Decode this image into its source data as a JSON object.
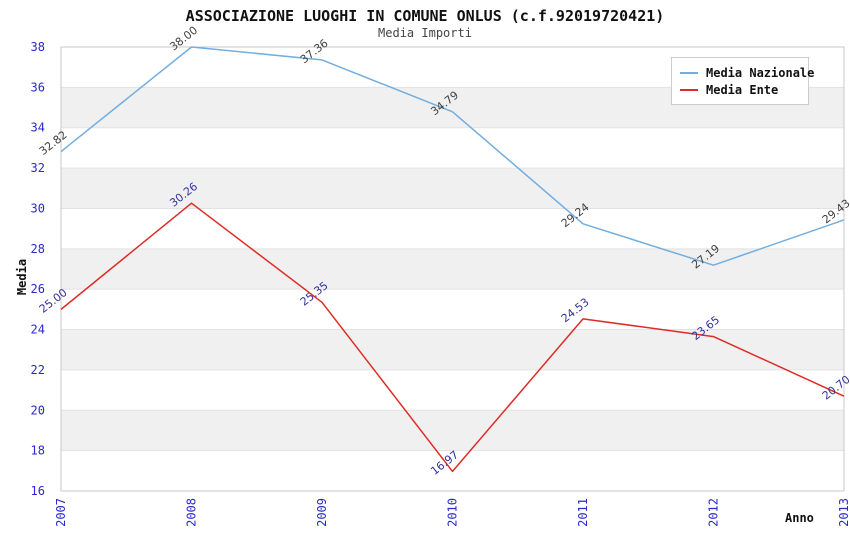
{
  "header": {
    "title": "ASSOCIAZIONE LUOGHI IN COMUNE ONLUS (c.f.92019720421)",
    "subtitle": "Media Importi"
  },
  "chart_data": {
    "type": "line",
    "title": "ASSOCIAZIONE LUOGHI IN COMUNE ONLUS (c.f.92019720421)",
    "subtitle": "Media Importi",
    "xlabel": "Anno",
    "ylabel": "Media",
    "x": [
      "2007",
      "2008",
      "2009",
      "2010",
      "2011",
      "2012",
      "2013"
    ],
    "series": [
      {
        "name": "Media Nazionale",
        "color": "#72aee0",
        "label_color": "#3f3f3f",
        "values": [
          32.82,
          38.0,
          37.36,
          34.79,
          29.24,
          27.19,
          29.43
        ]
      },
      {
        "name": "Media Ente",
        "color": "#df2b25",
        "label_color": "#333399",
        "values": [
          25.0,
          30.26,
          25.35,
          16.97,
          24.53,
          23.65,
          20.7
        ]
      }
    ],
    "ylim": [
      16,
      38
    ],
    "y_tick_step": 2,
    "y_ticks": [
      16,
      18,
      20,
      22,
      24,
      26,
      28,
      30,
      32,
      34,
      36,
      38
    ],
    "tick_color": "#2929cc",
    "band_colors": [
      "#ffffff",
      "#f0f0f0"
    ],
    "gridline_color": "#e2e2e2",
    "border_color": "#c9c9c9",
    "legend_position": "top-right",
    "grid": "horizontal-bands"
  }
}
